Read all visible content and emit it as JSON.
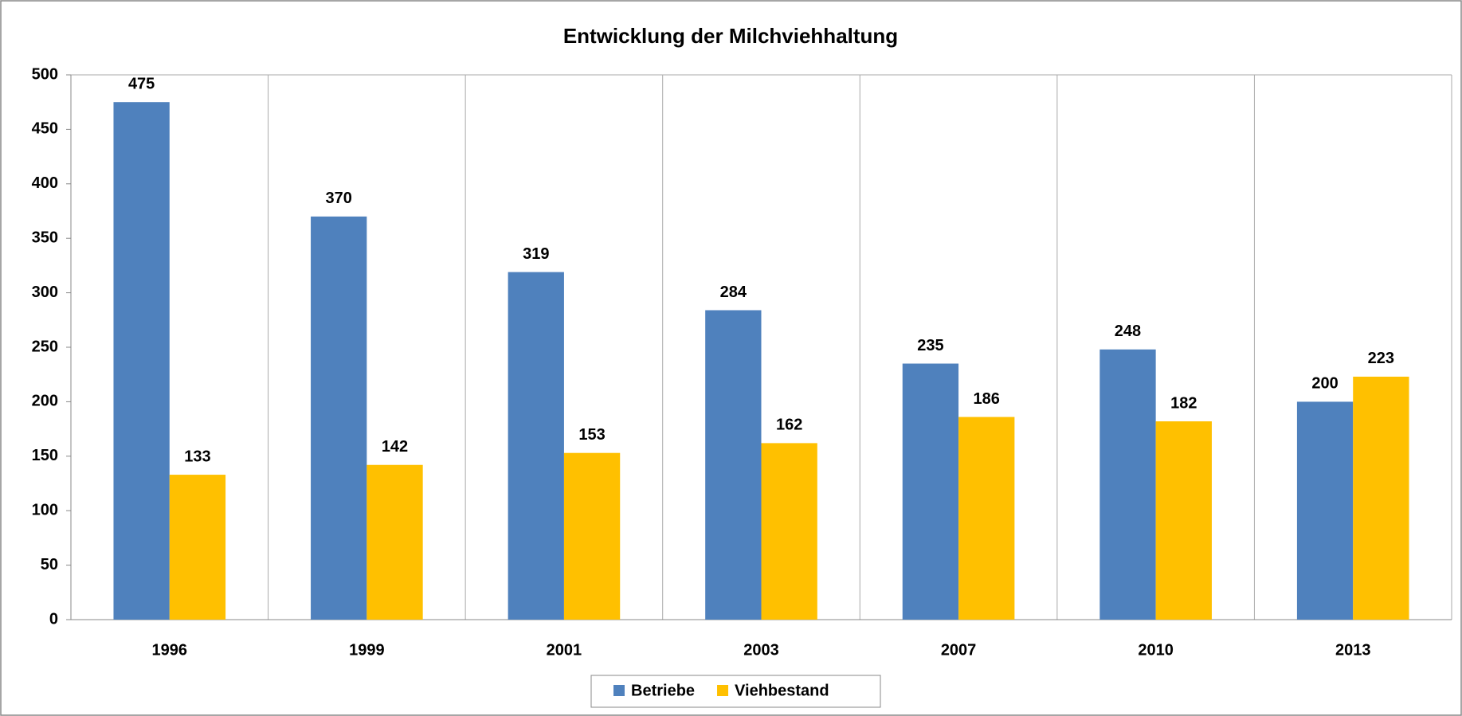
{
  "chart_data": {
    "type": "bar",
    "title": "Entwicklung der Milchviehhaltung",
    "categories": [
      "1996",
      "1999",
      "2001",
      "2003",
      "2007",
      "2010",
      "2013"
    ],
    "series": [
      {
        "name": "Betriebe",
        "color": "#4f81bd",
        "values": [
          475,
          370,
          319,
          284,
          235,
          248,
          200
        ]
      },
      {
        "name": "Viehbestand",
        "color": "#ffc000",
        "values": [
          133,
          142,
          153,
          162,
          186,
          182,
          223
        ]
      }
    ],
    "ylim": [
      0,
      500
    ],
    "yticks": [
      0,
      50,
      100,
      150,
      200,
      250,
      300,
      350,
      400,
      450,
      500
    ],
    "grid": "vertical",
    "legend": "bottom"
  }
}
